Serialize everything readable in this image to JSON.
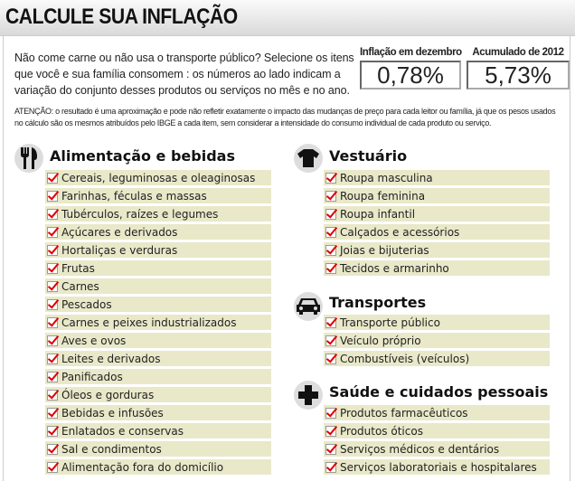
{
  "title": "CALCULE SUA INFLAÇÃO",
  "intro": "Não come carne ou não usa o transporte público? Selecione os itens que você e sua família consomem : os números ao lado indicam a variação do conjunto desses produtos ou serviços no mês e no ano.",
  "stats": [
    {
      "label": "Inflação em dezembro",
      "value": "0,78%"
    },
    {
      "label": "Acumulado de 2012",
      "value": "5,73%"
    }
  ],
  "note": "ATENÇÃO: o resultado é uma aproximação e pode não refletir exatamente o impacto das mudanças de preço para cada leitor ou família, já que os pesos usados no cálculo são os mesmos atribuídos pelo IBGE a cada item, sem considerar a intensidade do consumo individual de cada produto ou serviço.",
  "groups": [
    {
      "title": "Alimentação e bebidas",
      "icon": "fork-knife-icon",
      "items": [
        "Cereais, leguminosas e oleaginosas",
        "Farinhas, féculas e massas",
        "Tubérculos, raízes e legumes",
        "Açúcares e derivados",
        "Hortaliças e verduras",
        "Frutas",
        "Carnes",
        "Pescados",
        "Carnes e peixes industrializados",
        "Aves e ovos",
        "Leites e derivados",
        "Panificados",
        "Óleos e gorduras",
        "Bebidas e infusões",
        "Enlatados e conservas",
        "Sal e condimentos",
        "Alimentação fora do domicílio"
      ]
    },
    {
      "title": "Vestuário",
      "icon": "shirt-icon",
      "items": [
        "Roupa masculina",
        "Roupa feminina",
        "Roupa infantil",
        "Calçados e acessórios",
        "Joias e bijuterias",
        "Tecidos e armarinho"
      ]
    },
    {
      "title": "Transportes",
      "icon": "car-icon",
      "items": [
        "Transporte público",
        "Veículo próprio",
        "Combustíveis (veículos)"
      ]
    },
    {
      "title": "Saúde e cuidados pessoais",
      "icon": "medical-cross-icon",
      "items": [
        "Produtos farmacêuticos",
        "Produtos óticos",
        "Serviços médicos e dentários",
        "Serviços laboratoriais e hospitalares"
      ]
    }
  ]
}
